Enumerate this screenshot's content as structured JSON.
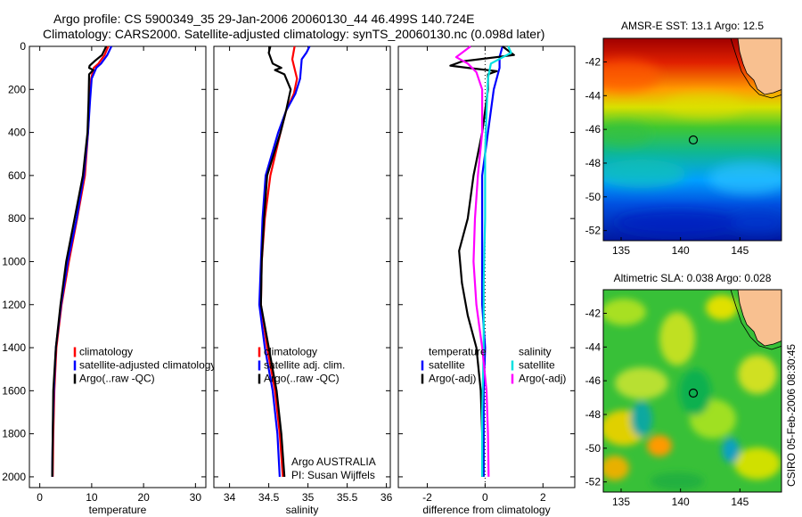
{
  "header": {
    "line1": "Argo profile: CS 5900349_35 29-Jan-2006 20060130_44 46.499S 140.724E",
    "line2": "Climatology: CARS2000. Satellite-adjusted climatology: synTS_20060130.nc (0.098d later)"
  },
  "footer": {
    "stamp": "CSIRO 05-Feb-2006 08:30:45"
  },
  "colors": {
    "climatology": "#ff0000",
    "satellite": "#0000ff",
    "argo": "#000000",
    "sat_diff": "#00e0e0",
    "argo_adj": "#ff00ff"
  },
  "chart_data": [
    {
      "type": "line",
      "id": "temperature-profile",
      "xlabel": "temperature",
      "ylabel": "",
      "xlim": [
        -2,
        32
      ],
      "ylim": [
        2050,
        0
      ],
      "xticks": [
        "0",
        "10",
        "20",
        "30"
      ],
      "xtick_values": [
        0,
        10,
        20,
        30
      ],
      "yticks": [
        "0",
        "200",
        "400",
        "600",
        "800",
        "1000",
        "1200",
        "1400",
        "1600",
        "1800",
        "2000"
      ],
      "ytick_values": [
        0,
        200,
        400,
        600,
        800,
        1000,
        1200,
        1400,
        1600,
        1800,
        2000
      ],
      "legend": {
        "placement": "lower-right",
        "entries": [
          "climatology",
          "satellite-adjusted climatology",
          "Argo(..raw -QC)"
        ]
      },
      "series": [
        {
          "name": "climatology",
          "color": "#ff0000",
          "points": [
            [
              13.2,
              0
            ],
            [
              12.5,
              40
            ],
            [
              11.3,
              80
            ],
            [
              10.4,
              100
            ],
            [
              9.9,
              150
            ],
            [
              9.6,
              250
            ],
            [
              9.3,
              400
            ],
            [
              8.7,
              600
            ],
            [
              7.2,
              800
            ],
            [
              5.6,
              1000
            ],
            [
              4.2,
              1200
            ],
            [
              3.2,
              1400
            ],
            [
              2.8,
              1600
            ],
            [
              2.6,
              1800
            ],
            [
              2.5,
              2000
            ]
          ]
        },
        {
          "name": "satellite-adjusted climatology",
          "color": "#0000ff",
          "points": [
            [
              13.8,
              0
            ],
            [
              13.0,
              40
            ],
            [
              11.8,
              80
            ],
            [
              10.9,
              100
            ],
            [
              10.0,
              150
            ],
            [
              9.7,
              250
            ],
            [
              9.3,
              400
            ],
            [
              8.5,
              600
            ],
            [
              7.1,
              800
            ],
            [
              5.4,
              1000
            ],
            [
              4.1,
              1200
            ],
            [
              3.1,
              1400
            ],
            [
              2.7,
              1600
            ],
            [
              2.5,
              1800
            ],
            [
              2.4,
              2000
            ]
          ]
        },
        {
          "name": "Argo(..raw -QC)",
          "color": "#000000",
          "points": [
            [
              12.8,
              0
            ],
            [
              12.0,
              40
            ],
            [
              10.5,
              70
            ],
            [
              9.6,
              90
            ],
            [
              9.5,
              100
            ],
            [
              10.3,
              110
            ],
            [
              9.5,
              130
            ],
            [
              9.4,
              250
            ],
            [
              9.2,
              400
            ],
            [
              8.3,
              600
            ],
            [
              6.7,
              800
            ],
            [
              5.1,
              1000
            ],
            [
              4.0,
              1200
            ],
            [
              3.1,
              1400
            ],
            [
              2.6,
              1600
            ],
            [
              2.5,
              1800
            ],
            [
              2.4,
              2000
            ]
          ]
        }
      ]
    },
    {
      "type": "line",
      "id": "salinity-profile",
      "xlabel": "salinity",
      "ylabel": "",
      "xlim": [
        33.8,
        36.05
      ],
      "ylim": [
        2050,
        0
      ],
      "xticks": [
        "34",
        "34.5",
        "35",
        "35.5",
        "36"
      ],
      "xtick_values": [
        34,
        34.5,
        35,
        35.5,
        36
      ],
      "legend": {
        "placement": "lower-right",
        "entries": [
          "climatology",
          "satellite adj. clim.",
          "Argo(..raw -QC)"
        ]
      },
      "annotation": [
        "Argo AUSTRALIA",
        "PI: Susan Wijffels"
      ],
      "series": [
        {
          "name": "climatology",
          "color": "#ff0000",
          "points": [
            [
              34.83,
              0
            ],
            [
              34.8,
              60
            ],
            [
              34.86,
              150
            ],
            [
              34.82,
              220
            ],
            [
              34.72,
              300
            ],
            [
              34.65,
              400
            ],
            [
              34.52,
              600
            ],
            [
              34.45,
              800
            ],
            [
              34.41,
              1000
            ],
            [
              34.4,
              1200
            ],
            [
              34.48,
              1400
            ],
            [
              34.58,
              1600
            ],
            [
              34.64,
              1800
            ],
            [
              34.68,
              2000
            ]
          ]
        },
        {
          "name": "satellite adj. clim.",
          "color": "#0000ff",
          "points": [
            [
              35.02,
              0
            ],
            [
              34.98,
              30
            ],
            [
              34.92,
              60
            ],
            [
              34.9,
              150
            ],
            [
              34.84,
              220
            ],
            [
              34.72,
              300
            ],
            [
              34.62,
              400
            ],
            [
              34.46,
              600
            ],
            [
              34.42,
              800
            ],
            [
              34.4,
              1000
            ],
            [
              34.38,
              1200
            ],
            [
              34.45,
              1400
            ],
            [
              34.55,
              1600
            ],
            [
              34.61,
              1800
            ],
            [
              34.64,
              2000
            ]
          ]
        },
        {
          "name": "Argo(..raw -QC)",
          "color": "#000000",
          "points": [
            [
              34.52,
              0
            ],
            [
              34.5,
              30
            ],
            [
              34.55,
              80
            ],
            [
              34.66,
              100
            ],
            [
              34.58,
              110
            ],
            [
              34.7,
              130
            ],
            [
              34.78,
              200
            ],
            [
              34.72,
              300
            ],
            [
              34.65,
              400
            ],
            [
              34.48,
              600
            ],
            [
              34.44,
              800
            ],
            [
              34.41,
              1000
            ],
            [
              34.4,
              1200
            ],
            [
              34.5,
              1400
            ],
            [
              34.6,
              1600
            ],
            [
              34.66,
              1800
            ],
            [
              34.7,
              2000
            ]
          ]
        }
      ]
    },
    {
      "type": "line",
      "id": "difference-profile",
      "xlabel": "difference from climatology",
      "ylabel": "",
      "xlim": [
        -3,
        3.1
      ],
      "ylim": [
        2050,
        0
      ],
      "xticks": [
        "-2",
        "0",
        "2"
      ],
      "xtick_values": [
        -2,
        0,
        2
      ],
      "legend": {
        "placement": "lower-center",
        "left_title": "temperature",
        "right_title": "salinity",
        "left_entries": [
          "satellite",
          "Argo(-adj)"
        ],
        "right_entries": [
          "satellite",
          "Argo(-adj)"
        ]
      },
      "series": [
        {
          "name": "temperature satellite",
          "color": "#0000ff",
          "points": [
            [
              0.6,
              0
            ],
            [
              0.5,
              50
            ],
            [
              0.5,
              100
            ],
            [
              0.3,
              200
            ],
            [
              0.1,
              400
            ],
            [
              -0.1,
              600
            ],
            [
              -0.1,
              800
            ],
            [
              -0.1,
              1000
            ],
            [
              -0.1,
              1200
            ],
            [
              0,
              1400
            ],
            [
              -0.05,
              1600
            ],
            [
              -0.05,
              1800
            ],
            [
              -0.05,
              2000
            ]
          ]
        },
        {
          "name": "temperature Argo(-adj)",
          "color": "#000000",
          "points": [
            [
              0.6,
              0
            ],
            [
              1.0,
              40
            ],
            [
              -0.8,
              70
            ],
            [
              -1.2,
              90
            ],
            [
              -0.6,
              100
            ],
            [
              0.4,
              115
            ],
            [
              0.1,
              130
            ],
            [
              0.1,
              200
            ],
            [
              0,
              300
            ],
            [
              -0.1,
              400
            ],
            [
              -0.4,
              600
            ],
            [
              -0.6,
              800
            ],
            [
              -0.9,
              950
            ],
            [
              -0.8,
              1100
            ],
            [
              -0.6,
              1250
            ],
            [
              -0.3,
              1400
            ],
            [
              -0.15,
              1600
            ],
            [
              -0.1,
              1800
            ],
            [
              -0.1,
              2000
            ]
          ]
        },
        {
          "name": "salinity satellite",
          "color": "#00e0e0",
          "points": [
            [
              0.8,
              0
            ],
            [
              0.9,
              30
            ],
            [
              0.2,
              80
            ],
            [
              0.1,
              150
            ],
            [
              0.05,
              300
            ],
            [
              0,
              500
            ],
            [
              0,
              800
            ],
            [
              -0.05,
              1100
            ],
            [
              -0.05,
              1400
            ],
            [
              -0.1,
              1700
            ],
            [
              -0.1,
              2000
            ]
          ]
        },
        {
          "name": "salinity Argo(-adj)",
          "color": "#ff00ff",
          "points": [
            [
              -0.5,
              0
            ],
            [
              -1.0,
              50
            ],
            [
              -0.6,
              80
            ],
            [
              -0.3,
              120
            ],
            [
              -0.1,
              200
            ],
            [
              -0.1,
              400
            ],
            [
              -0.25,
              600
            ],
            [
              -0.35,
              800
            ],
            [
              -0.4,
              1000
            ],
            [
              -0.3,
              1200
            ],
            [
              -0.1,
              1400
            ],
            [
              0.05,
              1600
            ],
            [
              0.1,
              1800
            ],
            [
              0.12,
              2000
            ]
          ]
        }
      ]
    },
    {
      "type": "heatmap",
      "id": "sst-map",
      "title": "AMSR-E SST: 13.1 Argo: 12.5",
      "xlim": [
        133.5,
        148.5
      ],
      "ylim": [
        -52.6,
        -40.6
      ],
      "xticks": [
        "135",
        "140",
        "145"
      ],
      "xtick_values": [
        135,
        140,
        145
      ],
      "yticks": [
        "-42",
        "-44",
        "-46",
        "-48",
        "-50",
        "-52"
      ],
      "ytick_values": [
        -42,
        -44,
        -46,
        -48,
        -50,
        -52
      ],
      "float_position": {
        "lon": 140.724,
        "lat": -46.499
      }
    },
    {
      "type": "heatmap",
      "id": "sla-map",
      "title": "Altimetric SLA: 0.038 Argo: 0.028",
      "xlim": [
        133.5,
        148.5
      ],
      "ylim": [
        -52.6,
        -40.6
      ],
      "xticks": [
        "135",
        "140",
        "145"
      ],
      "xtick_values": [
        135,
        140,
        145
      ],
      "yticks": [
        "-42",
        "-44",
        "-46",
        "-48",
        "-50",
        "-52"
      ],
      "ytick_values": [
        -42,
        -44,
        -46,
        -48,
        -50,
        -52
      ],
      "float_position": {
        "lon": 140.724,
        "lat": -46.499
      }
    }
  ]
}
